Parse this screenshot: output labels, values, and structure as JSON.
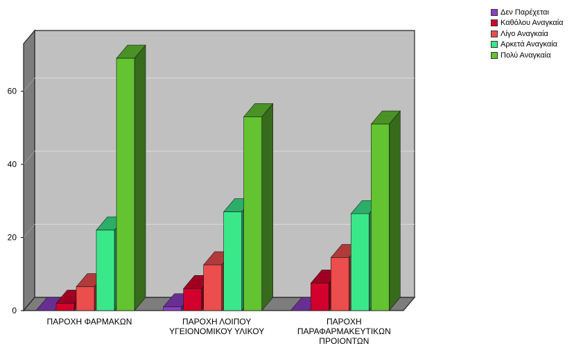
{
  "chart_data": {
    "type": "bar",
    "categories": [
      [
        "ΠΑΡΟΧΗ ΦΑΡΜΑΚΩΝ"
      ],
      [
        "ΠΑΡΟΧΗ ΛΟΙΠΟΥ",
        "ΥΓΕΙΟΝΟΜΙΚΟΥ ΥΛΙΚΟΥ"
      ],
      [
        "ΠΑΡΟΧΗ",
        "ΠΑΡΑΦΑΡΜΑΚΕΥΤΙΚΩΝ",
        "ΠΡΟΙΟΝΤΩΝ"
      ]
    ],
    "series": [
      {
        "name": "Δεν Παρέχεται",
        "values": [
          0,
          1,
          0
        ],
        "color": "#8a3fc4"
      },
      {
        "name": "Καθόλου Αναγκαία",
        "values": [
          2,
          6,
          7.5
        ],
        "color": "#d2002c"
      },
      {
        "name": "Λίγο Αναγκαία",
        "values": [
          6.5,
          12.5,
          14.5
        ],
        "color": "#ec4d4d"
      },
      {
        "name": "Αρκετά Αναγκαία",
        "values": [
          22,
          27,
          26.5
        ],
        "color": "#3ae88a"
      },
      {
        "name": "Πολύ Αναγκαία",
        "values": [
          69,
          53,
          51
        ],
        "color": "#63c331"
      }
    ],
    "yticks": [
      0,
      20,
      40,
      60
    ],
    "ylim": [
      0,
      73
    ],
    "grid": true,
    "legend_position": "top-right"
  }
}
